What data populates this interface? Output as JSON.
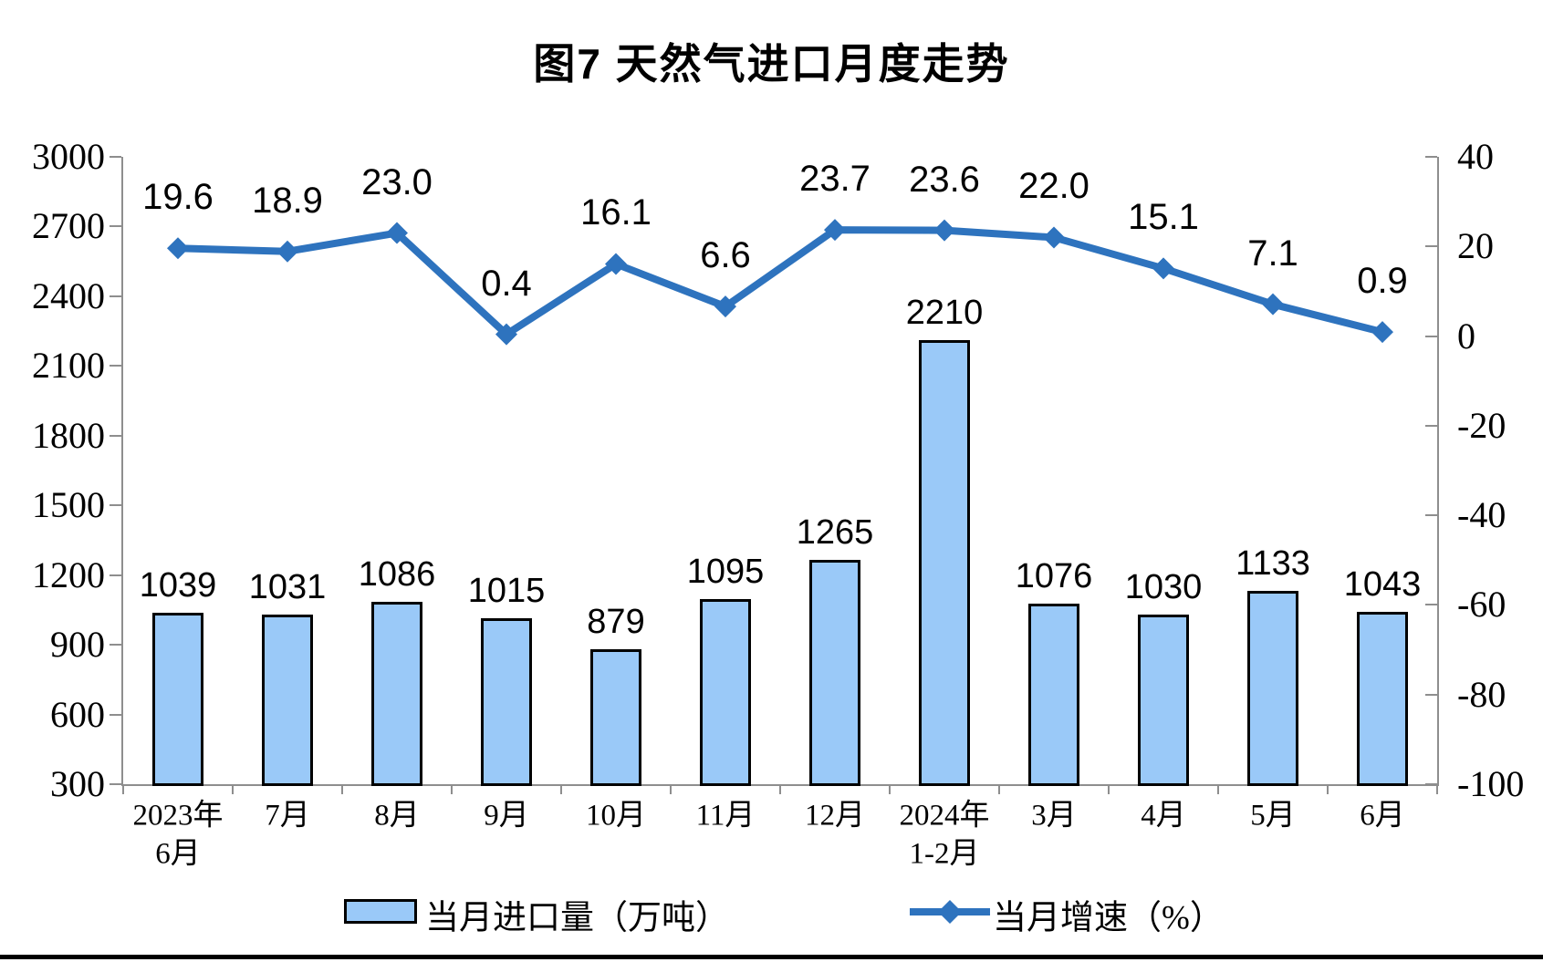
{
  "title": "图7 天然气进口月度走势",
  "legend": {
    "bar_label": "当月进口量（万吨）",
    "line_label": "当月增速（%）"
  },
  "colors": {
    "bar_fill": "#9AC9F8",
    "bar_border": "#000000",
    "line": "#2E73BE",
    "axis": "#8e8e8e",
    "text": "#000000",
    "background": "#ffffff"
  },
  "chart_data": {
    "type": "bar",
    "subtype": "bar+line dual axis",
    "title": "图7 天然气进口月度走势",
    "grid": false,
    "legend_position": "bottom",
    "categories": [
      {
        "line1": "2023年",
        "line2": "6月"
      },
      {
        "line1": "7月",
        "line2": ""
      },
      {
        "line1": "8月",
        "line2": ""
      },
      {
        "line1": "9月",
        "line2": ""
      },
      {
        "line1": "10月",
        "line2": ""
      },
      {
        "line1": "11月",
        "line2": ""
      },
      {
        "line1": "12月",
        "line2": ""
      },
      {
        "line1": "2024年",
        "line2": "1-2月"
      },
      {
        "line1": "3月",
        "line2": ""
      },
      {
        "line1": "4月",
        "line2": ""
      },
      {
        "line1": "5月",
        "line2": ""
      },
      {
        "line1": "6月",
        "line2": ""
      }
    ],
    "series": [
      {
        "name": "当月进口量（万吨）",
        "type": "bar",
        "axis": "left",
        "values": [
          1039,
          1031,
          1086,
          1015,
          879,
          1095,
          1265,
          2210,
          1076,
          1030,
          1133,
          1043
        ],
        "labels": [
          "1039",
          "1031",
          "1086",
          "1015",
          "879",
          "1095",
          "1265",
          "2210",
          "1076",
          "1030",
          "1133",
          "1043"
        ]
      },
      {
        "name": "当月增速（%）",
        "type": "line",
        "axis": "right",
        "values": [
          19.6,
          18.9,
          23.0,
          0.4,
          16.1,
          6.6,
          23.7,
          23.6,
          22.0,
          15.1,
          7.1,
          0.9
        ],
        "labels": [
          "19.6",
          "18.9",
          "23.0",
          "0.4",
          "16.1",
          "6.6",
          "23.7",
          "23.6",
          "22.0",
          "15.1",
          "7.1",
          "0.9"
        ]
      }
    ],
    "left_axis": {
      "min": 300,
      "max": 3000,
      "step": 300,
      "tick_labels": [
        "300",
        "600",
        "900",
        "1200",
        "1500",
        "1800",
        "2100",
        "2400",
        "2700",
        "3000"
      ]
    },
    "right_axis": {
      "min": -100,
      "max": 40,
      "step": 20,
      "tick_labels": [
        "-100",
        "-80",
        "-60",
        "-40",
        "-20",
        "0",
        "20",
        "40"
      ]
    }
  }
}
